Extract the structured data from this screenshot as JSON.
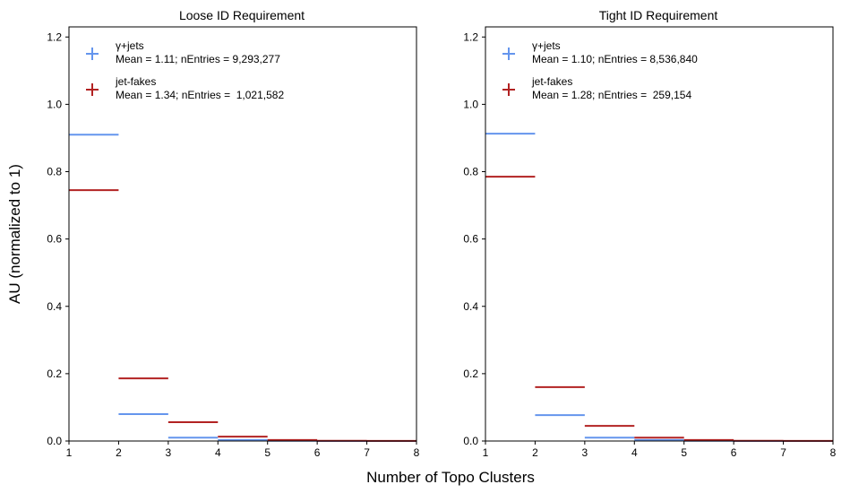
{
  "figure": {
    "xlabel": "Number of Topo Clusters",
    "ylabel": "AU (normalized to 1)"
  },
  "chart_data": [
    {
      "type": "step histogram",
      "title": "Loose ID Requirement",
      "xlim": [
        1,
        8
      ],
      "ylim": [
        0,
        1.23
      ],
      "x_ticks": [
        "1",
        "2",
        "3",
        "4",
        "5",
        "6",
        "7",
        "8"
      ],
      "y_ticks": [
        "0.0",
        "0.2",
        "0.4",
        "0.6",
        "0.8",
        "1.0",
        "1.2"
      ],
      "bin_edges": [
        1,
        2,
        3,
        4,
        5,
        6,
        7,
        8
      ],
      "series": [
        {
          "name": "γ+jets",
          "legend_detail": "Mean = 1.11; nEntries = 9,293,277",
          "color": "#6495ED",
          "values": [
            0.91,
            0.08,
            0.01,
            0.003,
            0.0005,
            0.0001,
            0.0
          ]
        },
        {
          "name": "jet-fakes",
          "legend_detail": "Mean = 1.34; nEntries =  1,021,582",
          "color": "#B22222",
          "values": [
            0.745,
            0.186,
            0.056,
            0.013,
            0.003,
            0.0007,
            0.0002
          ]
        }
      ]
    },
    {
      "type": "step histogram",
      "title": "Tight ID Requirement",
      "xlim": [
        1,
        8
      ],
      "ylim": [
        0,
        1.23
      ],
      "x_ticks": [
        "1",
        "2",
        "3",
        "4",
        "5",
        "6",
        "7",
        "8"
      ],
      "y_ticks": [
        "0.0",
        "0.2",
        "0.4",
        "0.6",
        "0.8",
        "1.0",
        "1.2"
      ],
      "bin_edges": [
        1,
        2,
        3,
        4,
        5,
        6,
        7,
        8
      ],
      "series": [
        {
          "name": "γ+jets",
          "legend_detail": "Mean = 1.10; nEntries = 8,536,840",
          "color": "#6495ED",
          "values": [
            0.913,
            0.077,
            0.01,
            0.003,
            0.0005,
            0.0001,
            0.0
          ]
        },
        {
          "name": "jet-fakes",
          "legend_detail": "Mean = 1.28; nEntries =  259,154",
          "color": "#B22222",
          "values": [
            0.785,
            0.16,
            0.045,
            0.01,
            0.003,
            0.0006,
            0.0002
          ]
        }
      ]
    }
  ]
}
